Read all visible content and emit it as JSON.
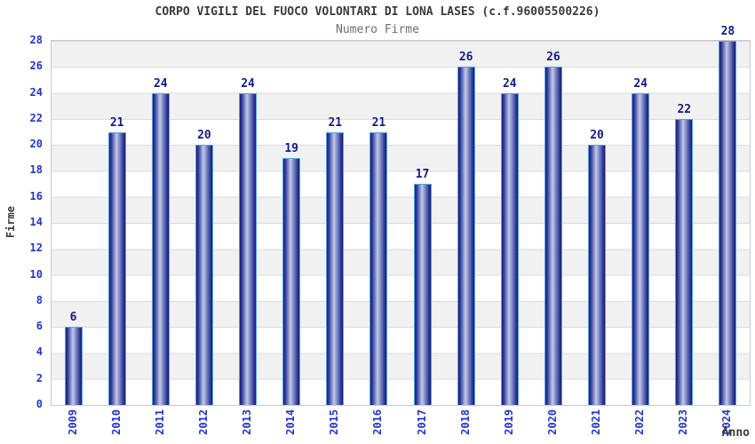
{
  "chart_data": {
    "type": "bar",
    "title": "CORPO VIGILI DEL FUOCO VOLONTARI DI LONA LASES (c.f.96005500226)",
    "subtitle": "Numero Firme",
    "xlabel": "Anno",
    "ylabel": "Firme",
    "categories": [
      "2009",
      "2010",
      "2011",
      "2012",
      "2013",
      "2014",
      "2015",
      "2016",
      "2017",
      "2018",
      "2019",
      "2020",
      "2021",
      "2022",
      "2023",
      "2024"
    ],
    "values": [
      6,
      21,
      24,
      20,
      24,
      19,
      21,
      21,
      17,
      26,
      24,
      26,
      20,
      24,
      22,
      28
    ],
    "ylim": [
      0,
      28
    ],
    "ytick_step": 2,
    "grid": true,
    "legend": "none",
    "colors": {
      "title": "#3b3b3b",
      "subtitle": "#6e6e6e",
      "axis_labels": "#2233cc",
      "value_labels": "#131c8c",
      "bar_dark": "#1a1f78",
      "bar_light": "#c3c9ec",
      "bar_border": "#55a2e4",
      "band_gray": "#f1f1f1",
      "band_white": "#ffffff",
      "gridline": "#dbdbdb"
    }
  }
}
